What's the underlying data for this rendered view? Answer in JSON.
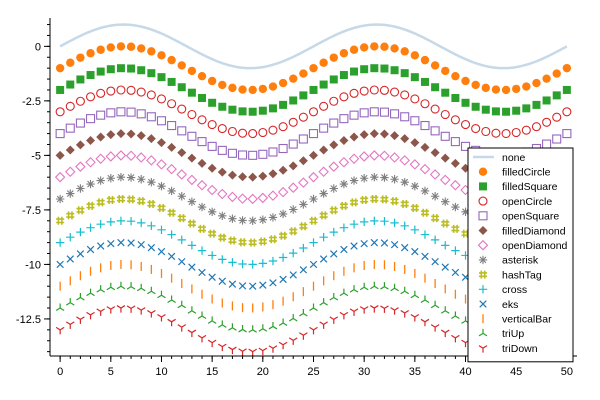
{
  "chart_data": {
    "type": "scatter",
    "title": "",
    "xlabel": "",
    "ylabel": "",
    "xlim": [
      -1,
      51
    ],
    "ylim": [
      -14.2,
      1.3
    ],
    "x_ticks": [
      0,
      5,
      10,
      15,
      20,
      25,
      30,
      35,
      40,
      45,
      50
    ],
    "x_tick_labels": [
      "0",
      "5",
      "10",
      "15",
      "20",
      "25",
      "30",
      "35",
      "40",
      "45",
      "50"
    ],
    "y_ticks": [
      0,
      -2.5,
      -5,
      -7.5,
      -10,
      -12.5
    ],
    "y_tick_labels": [
      "0",
      "-2.5",
      "-5",
      "-7.5",
      "-10",
      "-12.5"
    ],
    "grid": false,
    "legend_position": "bottom-right",
    "x": [
      0,
      1,
      2,
      3,
      4,
      5,
      6,
      7,
      8,
      9,
      10,
      11,
      12,
      13,
      14,
      15,
      16,
      17,
      18,
      19,
      20,
      21,
      22,
      23,
      24,
      25,
      26,
      27,
      28,
      29,
      30,
      31,
      32,
      33,
      34,
      35,
      36,
      37,
      38,
      39,
      40,
      41,
      42,
      43,
      44,
      45,
      46,
      47,
      48,
      49,
      50
    ],
    "wave": {
      "shape": "sine",
      "amplitude": 1,
      "period": 25,
      "peak_x": 6.25,
      "note_offset_step": -1
    },
    "series": [
      {
        "name": "none",
        "marker": "none",
        "offset": 0,
        "color": "#c6d9e8"
      },
      {
        "name": "filledCircle",
        "marker": "filledCircle",
        "offset": -1,
        "color": "#ff7f0e"
      },
      {
        "name": "filledSquare",
        "marker": "filledSquare",
        "offset": -2,
        "color": "#2ca02c"
      },
      {
        "name": "openCircle",
        "marker": "openCircle",
        "offset": -3,
        "color": "#d62728"
      },
      {
        "name": "openSquare",
        "marker": "openSquare",
        "offset": -4,
        "color": "#9467bd"
      },
      {
        "name": "filledDiamond",
        "marker": "filledDiamond",
        "offset": -5,
        "color": "#8c564b"
      },
      {
        "name": "openDiamond",
        "marker": "openDiamond",
        "offset": -6,
        "color": "#e377c2"
      },
      {
        "name": "asterisk",
        "marker": "asterisk",
        "offset": -7,
        "color": "#7f7f7f"
      },
      {
        "name": "hashTag",
        "marker": "hashTag",
        "offset": -8,
        "color": "#bcbd22"
      },
      {
        "name": "cross",
        "marker": "cross",
        "offset": -9,
        "color": "#17becf"
      },
      {
        "name": "eks",
        "marker": "eks",
        "offset": -10,
        "color": "#1f77b4"
      },
      {
        "name": "verticalBar",
        "marker": "verticalBar",
        "offset": -11,
        "color": "#ff7f0e"
      },
      {
        "name": "triUp",
        "marker": "triUp",
        "offset": -12,
        "color": "#2ca02c"
      },
      {
        "name": "triDown",
        "marker": "triDown",
        "offset": -13,
        "color": "#d62728"
      }
    ]
  }
}
